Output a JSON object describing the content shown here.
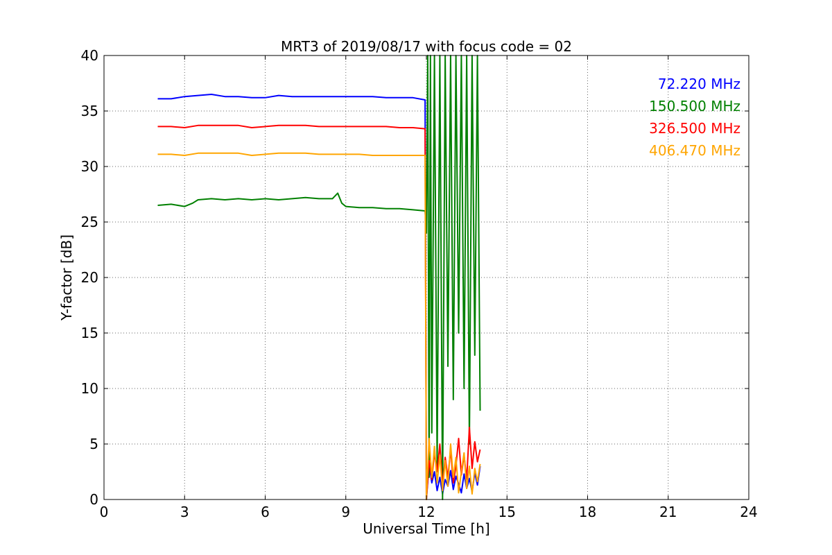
{
  "chart_data": {
    "type": "line",
    "title": "MRT3 of 2019/08/17 with focus code = 02",
    "xlabel": "Universal Time [h]",
    "ylabel": "Y-factor [dB]",
    "xlim": [
      0,
      24
    ],
    "ylim": [
      0,
      40
    ],
    "xticks": [
      0,
      3,
      6,
      9,
      12,
      15,
      18,
      21,
      24
    ],
    "yticks": [
      0,
      5,
      10,
      15,
      20,
      25,
      30,
      35,
      40
    ],
    "grid": true,
    "legend_position": "top-right",
    "series": [
      {
        "name": "72.220 MHz",
        "color": "#0000ff",
        "x": [
          2.0,
          2.5,
          3.0,
          3.5,
          4.0,
          4.5,
          5.0,
          5.5,
          6.0,
          6.5,
          7.0,
          7.5,
          8.0,
          8.5,
          9.0,
          9.5,
          10.0,
          10.5,
          11.0,
          11.5,
          11.95,
          12.0,
          12.1,
          12.2,
          12.3,
          12.4,
          12.5,
          12.6,
          12.7,
          12.8,
          12.9,
          13.0,
          13.1,
          13.2,
          13.3,
          13.4,
          13.5,
          13.6,
          13.7,
          13.8,
          13.9,
          14.0
        ],
        "y": [
          36.1,
          36.1,
          36.3,
          36.4,
          36.5,
          36.3,
          36.3,
          36.2,
          36.2,
          36.4,
          36.3,
          36.3,
          36.3,
          36.3,
          36.3,
          36.3,
          36.3,
          36.2,
          36.2,
          36.2,
          36.0,
          0.0,
          3.2,
          1.5,
          2.5,
          0.8,
          2.0,
          0.5,
          1.8,
          1.2,
          2.6,
          0.9,
          2.1,
          1.4,
          0.6,
          2.3,
          1.0,
          1.9,
          0.7,
          2.4,
          1.3,
          3.0
        ]
      },
      {
        "name": "150.500 MHz",
        "color": "#008000",
        "x": [
          2.0,
          2.5,
          3.0,
          3.3,
          3.5,
          4.0,
          4.5,
          5.0,
          5.5,
          6.0,
          6.5,
          7.0,
          7.5,
          8.0,
          8.5,
          8.7,
          8.85,
          9.0,
          9.5,
          10.0,
          10.5,
          11.0,
          11.5,
          11.95,
          12.0,
          12.05,
          12.1,
          12.15,
          12.2,
          12.3,
          12.4,
          12.5,
          12.6,
          12.7,
          12.8,
          12.9,
          13.0,
          13.1,
          13.2,
          13.3,
          13.4,
          13.5,
          13.6,
          13.7,
          13.8,
          13.9,
          14.0
        ],
        "y": [
          26.5,
          26.6,
          26.4,
          26.7,
          27.0,
          27.1,
          27.0,
          27.1,
          27.0,
          27.1,
          27.0,
          27.1,
          27.2,
          27.1,
          27.1,
          27.6,
          26.7,
          26.4,
          26.3,
          26.3,
          26.2,
          26.2,
          26.1,
          26.0,
          24.0,
          40.0,
          2.0,
          40.0,
          6.0,
          40.0,
          3.0,
          40.0,
          0.0,
          40.0,
          12.0,
          40.0,
          9.0,
          40.0,
          15.0,
          40.0,
          10.0,
          40.0,
          5.0,
          40.0,
          13.0,
          40.0,
          8.0
        ]
      },
      {
        "name": "326.500 MHz",
        "color": "#ff0000",
        "x": [
          2.0,
          2.5,
          3.0,
          3.5,
          4.0,
          4.5,
          5.0,
          5.5,
          6.0,
          6.5,
          7.0,
          7.5,
          8.0,
          8.5,
          9.0,
          9.5,
          10.0,
          10.5,
          11.0,
          11.5,
          11.95,
          12.0,
          12.1,
          12.2,
          12.3,
          12.4,
          12.5,
          12.6,
          12.7,
          12.8,
          12.9,
          13.0,
          13.1,
          13.2,
          13.3,
          13.4,
          13.5,
          13.6,
          13.7,
          13.8,
          13.9,
          14.0
        ],
        "y": [
          33.6,
          33.6,
          33.5,
          33.7,
          33.7,
          33.7,
          33.7,
          33.5,
          33.6,
          33.7,
          33.7,
          33.7,
          33.6,
          33.6,
          33.6,
          33.6,
          33.6,
          33.6,
          33.5,
          33.5,
          33.4,
          0.0,
          3.5,
          1.8,
          4.2,
          2.5,
          5.0,
          1.2,
          3.8,
          2.0,
          4.5,
          1.5,
          3.0,
          5.5,
          2.2,
          4.0,
          1.8,
          6.5,
          2.8,
          5.2,
          3.4,
          4.5
        ]
      },
      {
        "name": "406.470 MHz",
        "color": "#ffa500",
        "x": [
          2.0,
          2.5,
          3.0,
          3.5,
          4.0,
          4.5,
          5.0,
          5.5,
          6.0,
          6.5,
          7.0,
          7.5,
          8.0,
          8.5,
          9.0,
          9.5,
          10.0,
          10.5,
          11.0,
          11.5,
          11.95,
          12.0,
          12.1,
          12.2,
          12.3,
          12.4,
          12.5,
          12.6,
          12.7,
          12.8,
          12.9,
          13.0,
          13.1,
          13.2,
          13.3,
          13.4,
          13.5,
          13.6,
          13.7,
          13.8,
          13.9,
          14.0
        ],
        "y": [
          31.1,
          31.1,
          31.0,
          31.2,
          31.2,
          31.2,
          31.2,
          31.0,
          31.1,
          31.2,
          31.2,
          31.2,
          31.1,
          31.1,
          31.1,
          31.1,
          31.0,
          31.0,
          31.0,
          31.0,
          31.0,
          0.0,
          5.5,
          2.0,
          4.8,
          1.5,
          4.0,
          0.8,
          3.5,
          1.2,
          5.0,
          2.0,
          3.8,
          0.6,
          2.5,
          4.2,
          1.0,
          3.0,
          0.5,
          2.8,
          1.6,
          3.2
        ]
      }
    ]
  }
}
